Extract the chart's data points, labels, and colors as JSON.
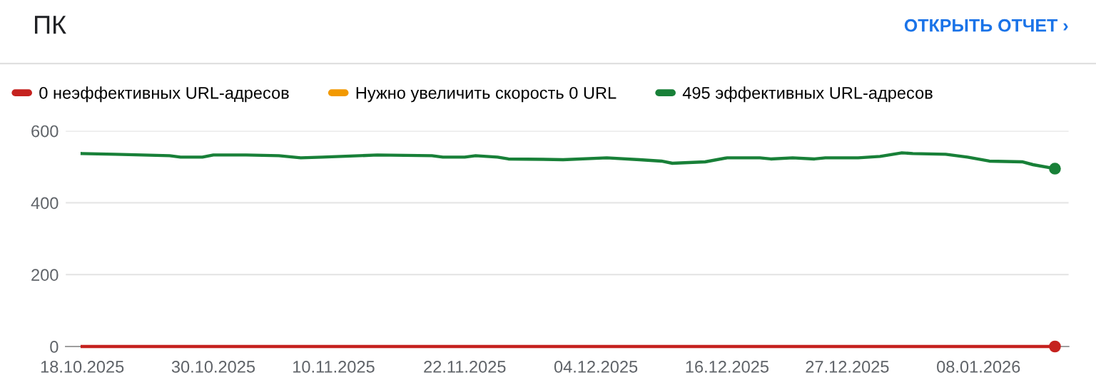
{
  "chart_data": {
    "type": "line",
    "title": "ПК",
    "annotations": [
      "ОТКРЫТЬ ОТЧЕТ ›"
    ],
    "xlim": [
      "2025-10-16T12:00",
      "2026-01-16T06:00"
    ],
    "xticks": [
      {
        "value": "2025-10-18",
        "label": "18.10.2025"
      },
      {
        "value": "2025-10-30",
        "label": "30.10.2025"
      },
      {
        "value": "2025-11-10",
        "label": "10.11.2025"
      },
      {
        "value": "2025-11-22",
        "label": "22.11.2025"
      },
      {
        "value": "2025-12-04",
        "label": "04.12.2025"
      },
      {
        "value": "2025-12-16",
        "label": "16.12.2025"
      },
      {
        "value": "2025-12-27",
        "label": "27.12.2025"
      },
      {
        "value": "2026-01-08",
        "label": "08.01.2026"
      }
    ],
    "ylim": [
      0,
      600
    ],
    "yticks": [
      0,
      200,
      400,
      600
    ],
    "grid": "y",
    "legend": "top",
    "line_style": "solid",
    "series": [
      {
        "name": "0 неэффективных URL-адресов",
        "color": "#c5221f",
        "x": [
          "2025-10-18",
          "2026-01-15"
        ],
        "values": [
          0,
          0
        ]
      },
      {
        "name": "Нужно увеличить скорость 0 URL",
        "color": "#f29900"
      },
      {
        "name": "495 эффективных URL-адресов",
        "color": "#188038",
        "x": [
          "2025-10-18",
          "2025-10-21",
          "2025-10-26",
          "2025-10-27",
          "2025-10-29",
          "2025-10-30",
          "2025-11-02",
          "2025-11-05",
          "2025-11-07",
          "2025-11-09",
          "2025-11-14",
          "2025-11-19",
          "2025-11-20",
          "2025-11-22",
          "2025-11-23",
          "2025-11-25",
          "2025-11-26",
          "2025-12-01",
          "2025-12-05",
          "2025-12-08",
          "2025-12-10",
          "2025-12-11",
          "2025-12-14",
          "2025-12-16",
          "2025-12-19",
          "2025-12-20",
          "2025-12-22",
          "2025-12-24",
          "2025-12-25",
          "2025-12-28",
          "2025-12-30",
          "2026-01-01",
          "2026-01-02",
          "2026-01-05",
          "2026-01-07",
          "2026-01-09",
          "2026-01-12",
          "2026-01-13",
          "2026-01-15"
        ],
        "values": [
          537,
          535,
          531,
          527,
          527,
          533,
          533,
          531,
          525,
          527,
          533,
          531,
          527,
          527,
          531,
          527,
          522,
          520,
          525,
          520,
          516,
          510,
          514,
          525,
          525,
          522,
          525,
          522,
          525,
          525,
          529,
          539,
          537,
          535,
          527,
          516,
          514,
          506,
          495
        ]
      }
    ]
  }
}
